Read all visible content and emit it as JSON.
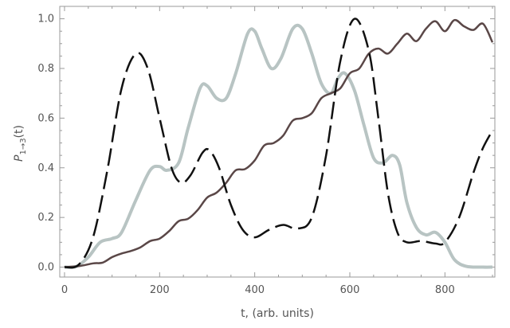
{
  "chart_data": {
    "type": "line",
    "xlabel": "t, (arb. units)",
    "ylabel": {
      "main": "P",
      "subscript": "1→3",
      "suffix": "(t)"
    },
    "xlim": [
      -10,
      905
    ],
    "ylim": [
      -0.04,
      1.05
    ],
    "x_ticks": [
      0,
      200,
      400,
      600,
      800
    ],
    "y_ticks": [
      "0.0",
      "0.2",
      "0.4",
      "0.6",
      "0.8",
      "1.0"
    ],
    "x_minor_step": 50,
    "y_minor_step": 0.05,
    "grid": false,
    "series": [
      {
        "color": "#b8c4c3",
        "style": "solid",
        "width": 4,
        "points": [
          [
            0,
            0
          ],
          [
            25,
            0.003
          ],
          [
            50,
            0.04
          ],
          [
            75,
            0.1
          ],
          [
            100,
            0.115
          ],
          [
            120,
            0.14
          ],
          [
            150,
            0.27
          ],
          [
            180,
            0.39
          ],
          [
            200,
            0.405
          ],
          [
            215,
            0.39
          ],
          [
            240,
            0.42
          ],
          [
            260,
            0.56
          ],
          [
            285,
            0.72
          ],
          [
            300,
            0.73
          ],
          [
            320,
            0.68
          ],
          [
            340,
            0.68
          ],
          [
            360,
            0.78
          ],
          [
            385,
            0.94
          ],
          [
            400,
            0.95
          ],
          [
            415,
            0.88
          ],
          [
            435,
            0.8
          ],
          [
            455,
            0.84
          ],
          [
            480,
            0.96
          ],
          [
            500,
            0.96
          ],
          [
            520,
            0.86
          ],
          [
            540,
            0.74
          ],
          [
            560,
            0.7
          ],
          [
            575,
            0.76
          ],
          [
            590,
            0.78
          ],
          [
            610,
            0.71
          ],
          [
            630,
            0.57
          ],
          [
            650,
            0.44
          ],
          [
            670,
            0.42
          ],
          [
            690,
            0.45
          ],
          [
            705,
            0.41
          ],
          [
            720,
            0.26
          ],
          [
            740,
            0.16
          ],
          [
            760,
            0.13
          ],
          [
            780,
            0.14
          ],
          [
            800,
            0.1
          ],
          [
            820,
            0.03
          ],
          [
            845,
            0.003
          ],
          [
            880,
            0.0
          ],
          [
            900,
            0.0
          ]
        ]
      },
      {
        "color": "#5a4747",
        "style": "solid",
        "width": 2.5,
        "points": [
          [
            0,
            0
          ],
          [
            30,
            0.004
          ],
          [
            60,
            0.015
          ],
          [
            80,
            0.018
          ],
          [
            100,
            0.04
          ],
          [
            120,
            0.055
          ],
          [
            140,
            0.065
          ],
          [
            160,
            0.08
          ],
          [
            180,
            0.105
          ],
          [
            200,
            0.115
          ],
          [
            220,
            0.145
          ],
          [
            240,
            0.185
          ],
          [
            260,
            0.195
          ],
          [
            280,
            0.23
          ],
          [
            300,
            0.28
          ],
          [
            320,
            0.3
          ],
          [
            340,
            0.34
          ],
          [
            360,
            0.39
          ],
          [
            380,
            0.395
          ],
          [
            400,
            0.43
          ],
          [
            420,
            0.49
          ],
          [
            440,
            0.5
          ],
          [
            460,
            0.53
          ],
          [
            480,
            0.59
          ],
          [
            500,
            0.6
          ],
          [
            520,
            0.62
          ],
          [
            540,
            0.68
          ],
          [
            560,
            0.7
          ],
          [
            580,
            0.72
          ],
          [
            600,
            0.78
          ],
          [
            620,
            0.8
          ],
          [
            640,
            0.86
          ],
          [
            660,
            0.88
          ],
          [
            680,
            0.86
          ],
          [
            700,
            0.9
          ],
          [
            720,
            0.94
          ],
          [
            740,
            0.91
          ],
          [
            760,
            0.96
          ],
          [
            780,
            0.99
          ],
          [
            800,
            0.95
          ],
          [
            820,
            0.995
          ],
          [
            840,
            0.97
          ],
          [
            860,
            0.955
          ],
          [
            880,
            0.98
          ],
          [
            900,
            0.905
          ]
        ]
      },
      {
        "color": "#111111",
        "style": "dashed",
        "width": 2.5,
        "points": [
          [
            0,
            0
          ],
          [
            30,
            0.01
          ],
          [
            60,
            0.12
          ],
          [
            90,
            0.39
          ],
          [
            120,
            0.72
          ],
          [
            150,
            0.86
          ],
          [
            175,
            0.8
          ],
          [
            200,
            0.6
          ],
          [
            225,
            0.4
          ],
          [
            245,
            0.34
          ],
          [
            265,
            0.37
          ],
          [
            290,
            0.46
          ],
          [
            305,
            0.47
          ],
          [
            325,
            0.4
          ],
          [
            350,
            0.25
          ],
          [
            375,
            0.15
          ],
          [
            400,
            0.12
          ],
          [
            430,
            0.15
          ],
          [
            460,
            0.17
          ],
          [
            490,
            0.155
          ],
          [
            520,
            0.2
          ],
          [
            550,
            0.45
          ],
          [
            580,
            0.83
          ],
          [
            610,
            1.0
          ],
          [
            640,
            0.87
          ],
          [
            660,
            0.6
          ],
          [
            680,
            0.3
          ],
          [
            700,
            0.14
          ],
          [
            720,
            0.1
          ],
          [
            750,
            0.105
          ],
          [
            780,
            0.095
          ],
          [
            800,
            0.1
          ],
          [
            830,
            0.2
          ],
          [
            860,
            0.38
          ],
          [
            880,
            0.48
          ],
          [
            900,
            0.55
          ]
        ]
      }
    ]
  }
}
